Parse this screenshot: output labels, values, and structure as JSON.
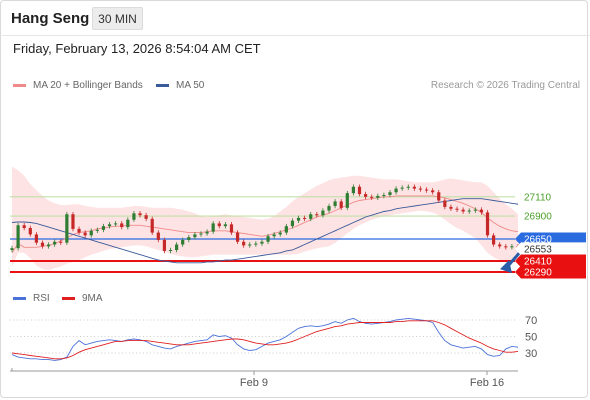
{
  "header": {
    "instrument": "Hang Seng",
    "timeframe": "30 MIN",
    "timestamp": "Friday, February 13, 2026 8:54:04 AM CET"
  },
  "legend": {
    "ma20": {
      "label": "MA 20 + Bollinger Bands",
      "color": "#f08a8a"
    },
    "ma50": {
      "label": "MA 50",
      "color": "#3a5a9a"
    },
    "credit": "Research © 2026 Trading Central"
  },
  "indicator_legend": {
    "rsi": {
      "label": "RSI",
      "color": "#4a72d8"
    },
    "ma9": {
      "label": "9MA",
      "color": "#e02020"
    }
  },
  "colors": {
    "band_fill": "#fde3e3",
    "support_line": "#e81010",
    "pivot_line": "#2b6be0",
    "resistance_line": "#c2e0a8",
    "resistance_text": "#4aa02a",
    "bull_candle": "#2e7d32",
    "bear_candle": "#c62828",
    "forecast_arrow": "#2a5ca8"
  },
  "chart_data": [
    {
      "type": "candlestick",
      "title": "Hang Seng 30 MIN",
      "x_tick_labels": [
        "Feb 9",
        "Feb 16"
      ],
      "ylim": [
        26215,
        26980
      ],
      "levels": [
        {
          "value": 27110,
          "label": "27110",
          "kind": "resistance"
        },
        {
          "value": 26900,
          "label": "26900",
          "kind": "resistance"
        },
        {
          "value": 26650,
          "label": "26650",
          "kind": "pivot"
        },
        {
          "value": 26553,
          "label": "26553",
          "kind": "last-price"
        },
        {
          "value": 26410,
          "label": "26410",
          "kind": "support"
        },
        {
          "value": 26290,
          "label": "26290",
          "kind": "support"
        }
      ],
      "close": [
        26550,
        26800,
        26770,
        26700,
        26610,
        26570,
        26590,
        26620,
        26610,
        26920,
        26760,
        26720,
        26690,
        26740,
        26750,
        26790,
        26810,
        26820,
        26780,
        26860,
        26930,
        26910,
        26870,
        26720,
        26640,
        26520,
        26530,
        26590,
        26640,
        26670,
        26700,
        26710,
        26730,
        26820,
        26790,
        26810,
        26720,
        26620,
        26580,
        26590,
        26600,
        26620,
        26680,
        26700,
        26720,
        26790,
        26850,
        26880,
        26870,
        26920,
        26910,
        26960,
        27010,
        27060,
        26990,
        27150,
        27220,
        27140,
        27110,
        27100,
        27120,
        27130,
        27160,
        27200,
        27210,
        27220,
        27200,
        27190,
        27180,
        27160,
        27070,
        27000,
        26980,
        26970,
        26950,
        26960,
        26970,
        26940,
        26690,
        26590,
        26570,
        26560,
        26570,
        26553
      ],
      "ma20": [
        26500,
        26600,
        26560,
        26560,
        26560,
        26570,
        26580,
        26600,
        26630,
        26660,
        26700,
        26720,
        26730,
        26740,
        26760,
        26770,
        26780,
        26790,
        26790,
        26800,
        26800,
        26800,
        26790,
        26780,
        26770,
        26760,
        26750,
        26740,
        26730,
        26720,
        26720,
        26720,
        26730,
        26740,
        26740,
        26740,
        26730,
        26720,
        26710,
        26700,
        26690,
        26680,
        26690,
        26710,
        26730,
        26750,
        26770,
        26800,
        26830,
        26860,
        26890,
        26910,
        26930,
        26960,
        26990,
        27020,
        27050,
        27070,
        27080,
        27090,
        27100,
        27110,
        27110,
        27120,
        27120,
        27120,
        27120,
        27120,
        27120,
        27120,
        27110,
        27100,
        27080,
        27060,
        27040,
        27010,
        26980,
        26940,
        26880,
        26830,
        26790,
        26760,
        26740,
        26730
      ],
      "bb_upper": [
        27440,
        27400,
        27340,
        27250,
        27180,
        27120,
        27070,
        27040,
        27020,
        27020,
        27030,
        27030,
        27010,
        27000,
        26990,
        26990,
        26990,
        26990,
        26990,
        27000,
        27010,
        27010,
        27000,
        26990,
        26990,
        26990,
        26990,
        26980,
        26970,
        26950,
        26930,
        26900,
        26890,
        26900,
        26910,
        26920,
        26910,
        26900,
        26890,
        26880,
        26870,
        26860,
        26870,
        26900,
        26950,
        27000,
        27060,
        27110,
        27150,
        27190,
        27230,
        27260,
        27290,
        27310,
        27320,
        27330,
        27340,
        27340,
        27330,
        27320,
        27310,
        27300,
        27300,
        27300,
        27290,
        27280,
        27270,
        27270,
        27270,
        27270,
        27280,
        27300,
        27310,
        27300,
        27290,
        27280,
        27270,
        27270,
        27230,
        27160,
        27090,
        27030,
        26980,
        26920
      ],
      "bb_lower": [
        26350,
        26500,
        26500,
        26440,
        26360,
        26320,
        26310,
        26330,
        26350,
        26380,
        26400,
        26420,
        26450,
        26480,
        26500,
        26520,
        26540,
        26550,
        26560,
        26570,
        26580,
        26580,
        26570,
        26550,
        26530,
        26510,
        26490,
        26470,
        26460,
        26450,
        26450,
        26460,
        26470,
        26480,
        26480,
        26480,
        26480,
        26480,
        26480,
        26480,
        26480,
        26480,
        26480,
        26480,
        26480,
        26480,
        26480,
        26490,
        26510,
        26530,
        26550,
        26560,
        26570,
        26610,
        26660,
        26710,
        26760,
        26800,
        26830,
        26860,
        26880,
        26900,
        26910,
        26920,
        26930,
        26940,
        26950,
        26960,
        26950,
        26940,
        26910,
        26860,
        26810,
        26770,
        26740,
        26700,
        26660,
        26580,
        26500,
        26450,
        26420,
        26400,
        26400,
        26420
      ],
      "ma50": [
        26830,
        26835,
        26835,
        26830,
        26820,
        26800,
        26780,
        26760,
        26740,
        26720,
        26700,
        26680,
        26660,
        26640,
        26620,
        26600,
        26580,
        26560,
        26540,
        26520,
        26500,
        26480,
        26460,
        26440,
        26420,
        26410,
        26400,
        26390,
        26390,
        26390,
        26390,
        26390,
        26400,
        26400,
        26410,
        26420,
        26420,
        26430,
        26440,
        26450,
        26460,
        26470,
        26480,
        26490,
        26500,
        26520,
        26530,
        26560,
        26590,
        26620,
        26650,
        26680,
        26710,
        26740,
        26770,
        26800,
        26830,
        26860,
        26890,
        26910,
        26930,
        26950,
        26960,
        26980,
        26990,
        27000,
        27010,
        27020,
        27030,
        27040,
        27050,
        27060,
        27070,
        27080,
        27090,
        27090,
        27090,
        27090,
        27080,
        27070,
        27060,
        27050,
        27040,
        27030
      ],
      "forecast": {
        "from": 26553,
        "to": 26300
      }
    },
    {
      "type": "line",
      "title": "RSI",
      "ylim": [
        0,
        100
      ],
      "y_ticks": [
        70,
        50,
        30
      ],
      "series": [
        {
          "name": "RSI",
          "values": [
            28,
            25,
            24,
            23,
            23,
            22,
            22,
            21,
            22,
            25,
            38,
            45,
            40,
            42,
            44,
            45,
            46,
            45,
            44,
            46,
            47,
            46,
            44,
            40,
            38,
            36,
            35,
            38,
            40,
            42,
            44,
            45,
            46,
            52,
            50,
            51,
            48,
            40,
            35,
            33,
            34,
            38,
            42,
            44,
            46,
            50,
            55,
            60,
            62,
            63,
            62,
            63,
            65,
            68,
            66,
            70,
            72,
            68,
            66,
            65,
            66,
            67,
            68,
            70,
            71,
            72,
            71,
            70,
            69,
            67,
            55,
            45,
            40,
            38,
            36,
            37,
            38,
            35,
            28,
            26,
            27,
            35,
            38,
            37
          ]
        },
        {
          "name": "9MA",
          "values": [
            30,
            29,
            28,
            27,
            26,
            25,
            24,
            23,
            23,
            24,
            27,
            31,
            34,
            36,
            38,
            40,
            42,
            44,
            44,
            45,
            45,
            45,
            45,
            44,
            43,
            42,
            41,
            40,
            40,
            40,
            41,
            42,
            43,
            44,
            45,
            46,
            47,
            47,
            46,
            44,
            42,
            41,
            40,
            40,
            41,
            42,
            44,
            47,
            50,
            53,
            56,
            58,
            60,
            62,
            63,
            65,
            66,
            67,
            67,
            67,
            67,
            67,
            67,
            68,
            68,
            69,
            69,
            69,
            69,
            69,
            67,
            64,
            60,
            56,
            52,
            48,
            45,
            42,
            38,
            35,
            33,
            31,
            31,
            32
          ]
        }
      ]
    }
  ]
}
